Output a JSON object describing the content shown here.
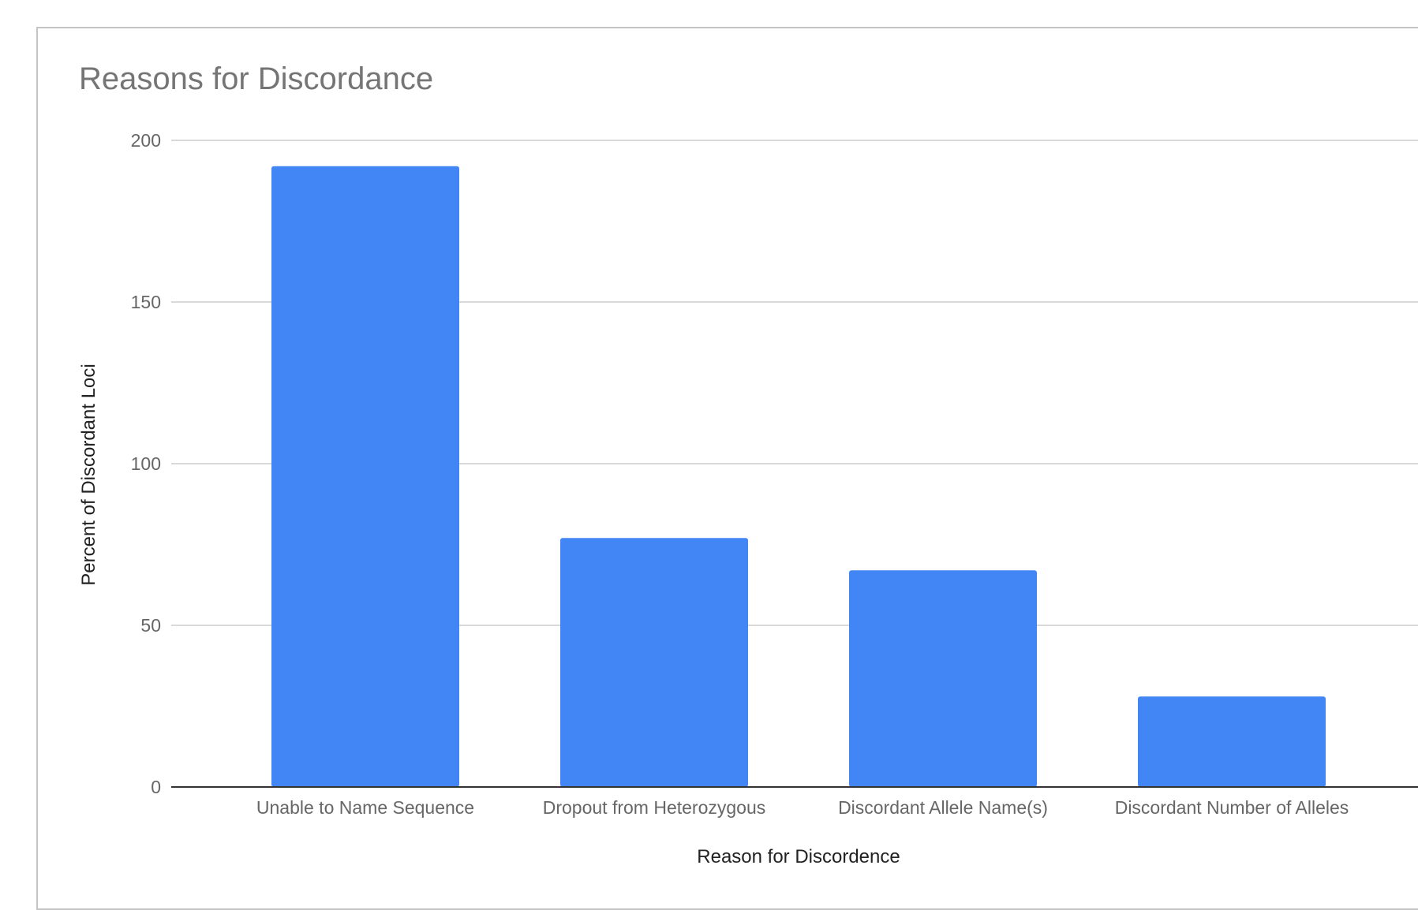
{
  "chart_data": {
    "type": "bar",
    "title": "Reasons for Discordance",
    "xlabel": "Reason for Discordence",
    "ylabel": "Percent of Discordant Loci",
    "categories": [
      "Unable to Name Sequence",
      "Dropout from Heterozygous",
      "Discordant Allele Name(s)",
      "Discordant Number of Alleles"
    ],
    "values": [
      192,
      77,
      67,
      28
    ],
    "ylim": [
      0,
      200
    ],
    "yticks": [
      0,
      50,
      100,
      150,
      200
    ],
    "grid": true,
    "legend": "none",
    "bar_color": "#4285f4",
    "gridline_color": "#d9d9d9",
    "baseline_color": "#333333"
  }
}
